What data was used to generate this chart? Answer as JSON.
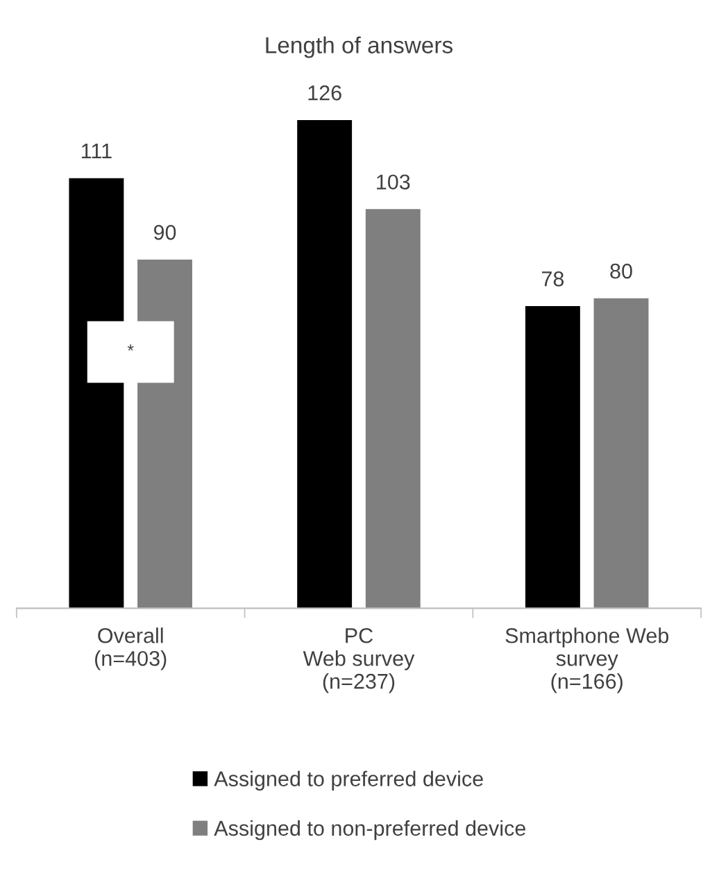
{
  "chart_data": {
    "type": "bar",
    "title": "Length of answers",
    "categories": [
      "Overall\n(n=403)",
      "PC\nWeb survey\n(n=237)",
      "Smartphone Web\nsurvey\n(n=166)"
    ],
    "series": [
      {
        "name": "Assigned to preferred device",
        "color": "#000000",
        "values": [
          111,
          126,
          78
        ]
      },
      {
        "name": "Assigned to non-preferred device",
        "color": "#7f7f7f",
        "values": [
          90,
          103,
          80
        ]
      }
    ],
    "data_labels": true,
    "grid": false,
    "legend": "bottom",
    "annotations": [
      "*"
    ]
  }
}
